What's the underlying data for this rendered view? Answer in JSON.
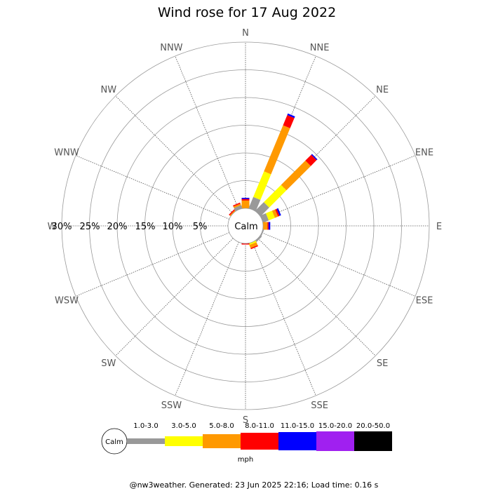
{
  "chart_data": {
    "type": "windrose",
    "title": "Wind rose for 17 Aug 2022",
    "directions": [
      "N",
      "NNE",
      "NE",
      "ENE",
      "E",
      "ESE",
      "SE",
      "SSE",
      "S",
      "SSW",
      "SW",
      "WSW",
      "W",
      "WNW",
      "NW",
      "NNW"
    ],
    "radial_ticks": [
      "30%",
      "25%",
      "20%",
      "15%",
      "10%",
      "5%"
    ],
    "radial_max_percent": 30,
    "calm_label": "Calm",
    "unit": "mph",
    "speed_bins": [
      "1.0-3.0",
      "3.0-5.0",
      "5.0-8.0",
      "8.0-11.0",
      "11.0-15.0",
      "15.0-20.0",
      "20.0-50.0"
    ],
    "bin_colors": [
      "#999999",
      "#ffff00",
      "#ff9900",
      "#ff0000",
      "#0000ff",
      "#a020f0",
      "#000000"
    ],
    "frequencies": {
      "N": [
        0.0,
        0.0,
        1.4,
        0.3,
        0.2,
        0.0,
        0.0
      ],
      "NNE": [
        2.2,
        5.0,
        9.0,
        2.0,
        0.3,
        0.0,
        0.0
      ],
      "NE": [
        2.2,
        4.4,
        6.2,
        1.5,
        0.2,
        0.0,
        0.0
      ],
      "ENE": [
        1.1,
        1.2,
        0.6,
        0.3,
        0.3,
        0.0,
        0.0
      ],
      "E": [
        0.0,
        0.0,
        0.8,
        0.2,
        0.3,
        0.0,
        0.0
      ],
      "ESE": [
        0.2,
        0.0,
        0.0,
        0.0,
        0.0,
        0.0,
        0.0
      ],
      "SE": [
        0.3,
        0.0,
        0.0,
        0.0,
        0.0,
        0.0,
        0.0
      ],
      "SSE": [
        0.0,
        0.3,
        0.6,
        0.2,
        0.0,
        0.0,
        0.0
      ],
      "S": [
        0.0,
        0.0,
        0.0,
        0.2,
        0.0,
        0.0,
        0.0
      ],
      "SSW": [
        0.0,
        0.0,
        0.0,
        0.0,
        0.0,
        0.0,
        0.0
      ],
      "SW": [
        0.0,
        0.0,
        0.0,
        0.0,
        0.0,
        0.0,
        0.0
      ],
      "WSW": [
        0.0,
        0.0,
        0.0,
        0.0,
        0.0,
        0.0,
        0.0
      ],
      "W": [
        0.0,
        0.0,
        0.0,
        0.0,
        0.0,
        0.0,
        0.0
      ],
      "WNW": [
        0.0,
        0.0,
        0.0,
        0.0,
        0.0,
        0.0,
        0.0
      ],
      "NW": [
        0.0,
        0.0,
        0.2,
        0.2,
        0.0,
        0.0,
        0.0
      ],
      "NNW": [
        0.6,
        0.0,
        0.3,
        0.2,
        0.0,
        0.0,
        0.0
      ]
    }
  },
  "footer": "@nw3weather. Generated: 23 Jun 2025 22:16; Load time: 0.16 s"
}
